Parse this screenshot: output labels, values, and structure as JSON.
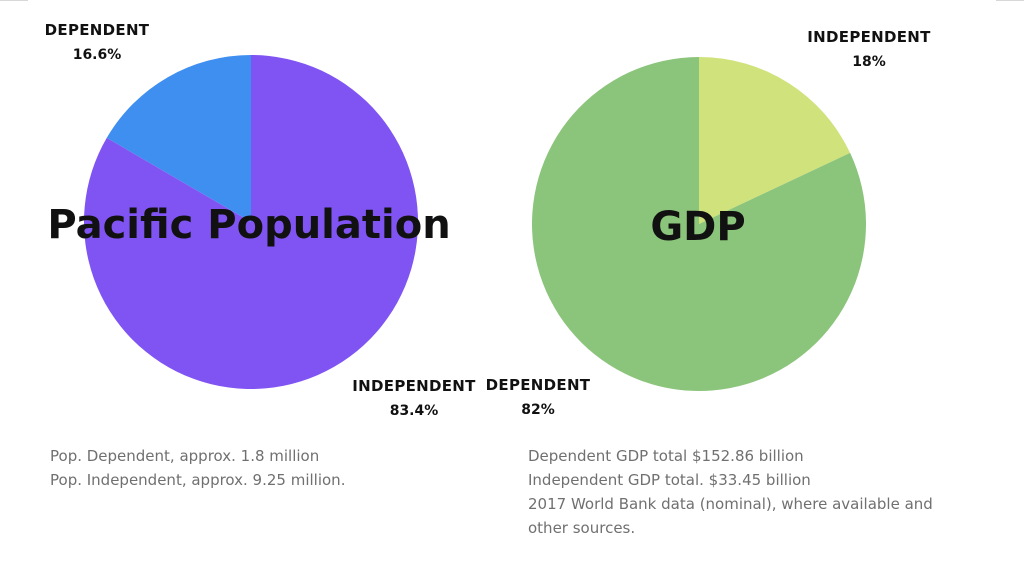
{
  "colors": {
    "population_dependent": "#3f8ff0",
    "population_independent": "#8054f2",
    "gdp_dependent": "#8bc47b",
    "gdp_independent": "#d0e27b"
  },
  "chart_data": [
    {
      "type": "pie",
      "title": "Pacific Population",
      "slices": [
        {
          "label": "DEPENDENT",
          "value": 16.6,
          "value_label": "16.6%",
          "color": "#3f8ff0"
        },
        {
          "label": "INDEPENDENT",
          "value": 83.4,
          "value_label": "83.4%",
          "color": "#8054f2"
        }
      ]
    },
    {
      "type": "pie",
      "title": "GDP",
      "slices": [
        {
          "label": "INDEPENDENT",
          "value": 18,
          "value_label": "18%",
          "color": "#d0e27b"
        },
        {
          "label": "DEPENDENT",
          "value": 82,
          "value_label": "82%",
          "color": "#8bc47b"
        }
      ]
    }
  ],
  "notes_left": [
    "Pop. Dependent, approx. 1.8 million",
    "Pop. Independent, approx. 9.25 million."
  ],
  "notes_right": [
    "Dependent GDP total $152.86 billion",
    "Independent GDP total. $33.45 billion",
    "2017 World Bank data (nominal), where available and",
    "other sources."
  ]
}
